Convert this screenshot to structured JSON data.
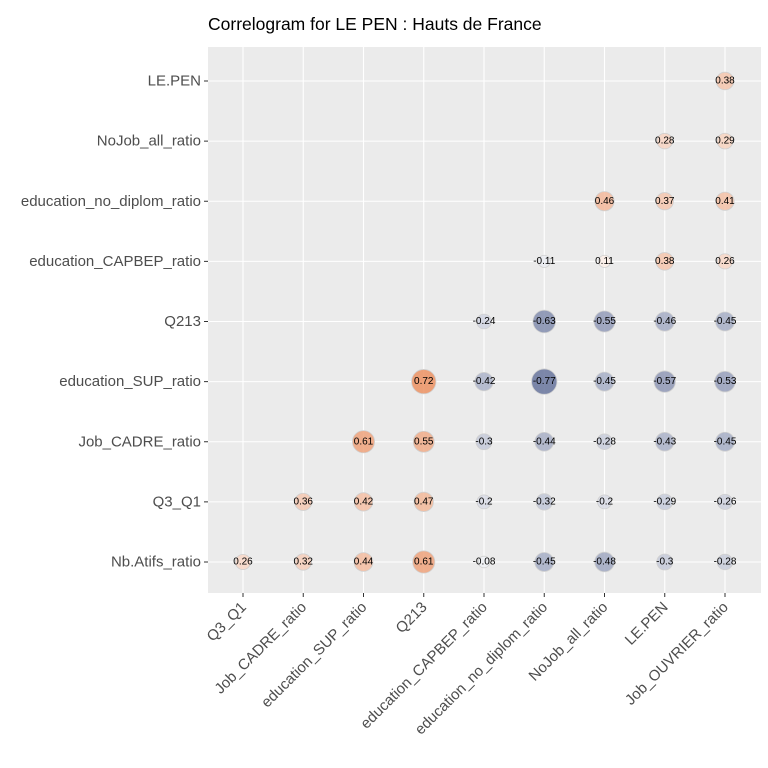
{
  "chart_data": {
    "type": "correlogram",
    "title": "Correlogram for LE PEN : Hauts de France",
    "x_categories": [
      "Q3_Q1",
      "Job_CADRE_ratio",
      "education_SUP_ratio",
      "Q213",
      "education_CAPBEP_ratio",
      "education_no_diplom_ratio",
      "NoJob_all_ratio",
      "LE.PEN",
      "Job_OUVRIER_ratio"
    ],
    "y_categories": [
      "Nb.Atifs_ratio",
      "Q3_Q1",
      "Job_CADRE_ratio",
      "education_SUP_ratio",
      "Q213",
      "education_CAPBEP_ratio",
      "education_no_diplom_ratio",
      "NoJob_all_ratio",
      "LE.PEN"
    ],
    "cells": [
      {
        "x": "Q3_Q1",
        "y": "Nb.Atifs_ratio",
        "value": 0.26,
        "label": "0.26"
      },
      {
        "x": "Job_CADRE_ratio",
        "y": "Nb.Atifs_ratio",
        "value": 0.32,
        "label": "0.32"
      },
      {
        "x": "education_SUP_ratio",
        "y": "Nb.Atifs_ratio",
        "value": 0.44,
        "label": "0.44"
      },
      {
        "x": "Q213",
        "y": "Nb.Atifs_ratio",
        "value": 0.61,
        "label": "0.61"
      },
      {
        "x": "education_CAPBEP_ratio",
        "y": "Nb.Atifs_ratio",
        "value": -0.08,
        "label": "-0.08"
      },
      {
        "x": "education_no_diplom_ratio",
        "y": "Nb.Atifs_ratio",
        "value": -0.45,
        "label": "-0.45"
      },
      {
        "x": "NoJob_all_ratio",
        "y": "Nb.Atifs_ratio",
        "value": -0.48,
        "label": "-0.48"
      },
      {
        "x": "LE.PEN",
        "y": "Nb.Atifs_ratio",
        "value": -0.3,
        "label": "-0.3"
      },
      {
        "x": "Job_OUVRIER_ratio",
        "y": "Nb.Atifs_ratio",
        "value": -0.28,
        "label": "-0.28"
      },
      {
        "x": "Job_CADRE_ratio",
        "y": "Q3_Q1",
        "value": 0.36,
        "label": "0.36"
      },
      {
        "x": "education_SUP_ratio",
        "y": "Q3_Q1",
        "value": 0.42,
        "label": "0.42"
      },
      {
        "x": "Q213",
        "y": "Q3_Q1",
        "value": 0.47,
        "label": "0.47"
      },
      {
        "x": "education_CAPBEP_ratio",
        "y": "Q3_Q1",
        "value": -0.2,
        "label": "-0.2"
      },
      {
        "x": "education_no_diplom_ratio",
        "y": "Q3_Q1",
        "value": -0.32,
        "label": "-0.32"
      },
      {
        "x": "NoJob_all_ratio",
        "y": "Q3_Q1",
        "value": -0.2,
        "label": "-0.2"
      },
      {
        "x": "LE.PEN",
        "y": "Q3_Q1",
        "value": -0.29,
        "label": "-0.29"
      },
      {
        "x": "Job_OUVRIER_ratio",
        "y": "Q3_Q1",
        "value": -0.26,
        "label": "-0.26"
      },
      {
        "x": "education_SUP_ratio",
        "y": "Job_CADRE_ratio",
        "value": 0.61,
        "label": "0.61"
      },
      {
        "x": "Q213",
        "y": "Job_CADRE_ratio",
        "value": 0.55,
        "label": "0.55"
      },
      {
        "x": "education_CAPBEP_ratio",
        "y": "Job_CADRE_ratio",
        "value": -0.3,
        "label": "-0.3"
      },
      {
        "x": "education_no_diplom_ratio",
        "y": "Job_CADRE_ratio",
        "value": -0.44,
        "label": "-0.44"
      },
      {
        "x": "NoJob_all_ratio",
        "y": "Job_CADRE_ratio",
        "value": -0.28,
        "label": "-0.28"
      },
      {
        "x": "LE.PEN",
        "y": "Job_CADRE_ratio",
        "value": -0.43,
        "label": "-0.43"
      },
      {
        "x": "Job_OUVRIER_ratio",
        "y": "Job_CADRE_ratio",
        "value": -0.45,
        "label": "-0.45"
      },
      {
        "x": "Q213",
        "y": "education_SUP_ratio",
        "value": 0.72,
        "label": "0.72"
      },
      {
        "x": "education_CAPBEP_ratio",
        "y": "education_SUP_ratio",
        "value": -0.42,
        "label": "-0.42"
      },
      {
        "x": "education_no_diplom_ratio",
        "y": "education_SUP_ratio",
        "value": -0.77,
        "label": "-0.77"
      },
      {
        "x": "NoJob_all_ratio",
        "y": "education_SUP_ratio",
        "value": -0.45,
        "label": "-0.45"
      },
      {
        "x": "LE.PEN",
        "y": "education_SUP_ratio",
        "value": -0.57,
        "label": "-0.57"
      },
      {
        "x": "Job_OUVRIER_ratio",
        "y": "education_SUP_ratio",
        "value": -0.53,
        "label": "-0.53"
      },
      {
        "x": "education_CAPBEP_ratio",
        "y": "Q213",
        "value": -0.24,
        "label": "-0.24"
      },
      {
        "x": "education_no_diplom_ratio",
        "y": "Q213",
        "value": -0.63,
        "label": "-0.63"
      },
      {
        "x": "NoJob_all_ratio",
        "y": "Q213",
        "value": -0.55,
        "label": "-0.55"
      },
      {
        "x": "LE.PEN",
        "y": "Q213",
        "value": -0.46,
        "label": "-0.46"
      },
      {
        "x": "Job_OUVRIER_ratio",
        "y": "Q213",
        "value": -0.45,
        "label": "-0.45"
      },
      {
        "x": "education_no_diplom_ratio",
        "y": "education_CAPBEP_ratio",
        "value": -0.11,
        "label": "-0.11"
      },
      {
        "x": "NoJob_all_ratio",
        "y": "education_CAPBEP_ratio",
        "value": 0.11,
        "label": "0.11"
      },
      {
        "x": "LE.PEN",
        "y": "education_CAPBEP_ratio",
        "value": 0.38,
        "label": "0.38"
      },
      {
        "x": "Job_OUVRIER_ratio",
        "y": "education_CAPBEP_ratio",
        "value": 0.26,
        "label": "0.26"
      },
      {
        "x": "NoJob_all_ratio",
        "y": "education_no_diplom_ratio",
        "value": 0.46,
        "label": "0.46"
      },
      {
        "x": "LE.PEN",
        "y": "education_no_diplom_ratio",
        "value": 0.37,
        "label": "0.37"
      },
      {
        "x": "Job_OUVRIER_ratio",
        "y": "education_no_diplom_ratio",
        "value": 0.41,
        "label": "0.41"
      },
      {
        "x": "LE.PEN",
        "y": "NoJob_all_ratio",
        "value": 0.28,
        "label": "0.28"
      },
      {
        "x": "Job_OUVRIER_ratio",
        "y": "NoJob_all_ratio",
        "value": 0.29,
        "label": "0.29"
      },
      {
        "x": "Job_OUVRIER_ratio",
        "y": "LE.PEN",
        "value": 0.38,
        "label": "0.38"
      }
    ],
    "colors": {
      "positive": "#E46726",
      "negative": "#3A4A7E",
      "panel_background": "#EBEBEB",
      "grid": "#FFFFFF"
    },
    "grid": true,
    "legend": "none"
  }
}
